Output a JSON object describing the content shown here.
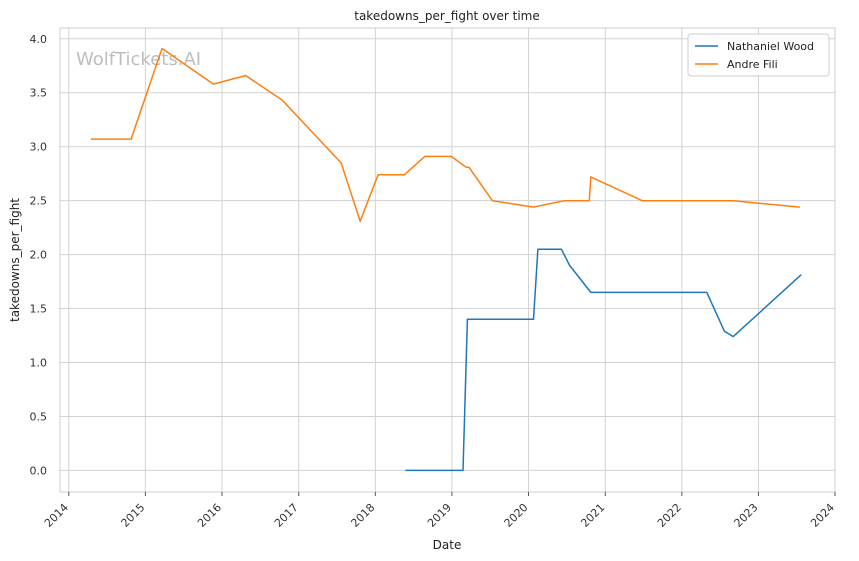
{
  "chart_data": {
    "type": "line",
    "title": "takedowns_per_fight over time",
    "xlabel": "Date",
    "ylabel": "takedowns_per_fight",
    "watermark": "WolfTickets.AI",
    "xlim": [
      "2013-11-20",
      "2024-01-01"
    ],
    "ylim": [
      -0.2,
      4.1
    ],
    "x_ticks": [
      "2014",
      "2015",
      "2016",
      "2017",
      "2018",
      "2019",
      "2020",
      "2021",
      "2022",
      "2023",
      "2024"
    ],
    "y_ticks": [
      "0.0",
      "0.5",
      "1.0",
      "1.5",
      "2.0",
      "2.5",
      "3.0",
      "3.5",
      "4.0"
    ],
    "grid": true,
    "legend_position": "top-right",
    "series": [
      {
        "name": "Nathaniel Wood",
        "color": "#1f77b4",
        "points": [
          [
            "2018-05-27",
            0.0
          ],
          [
            "2019-02-23",
            0.0
          ],
          [
            "2019-03-16",
            1.4
          ],
          [
            "2020-01-25",
            1.4
          ],
          [
            "2020-02-15",
            2.05
          ],
          [
            "2020-06-06",
            2.05
          ],
          [
            "2020-07-15",
            1.9
          ],
          [
            "2020-10-24",
            1.65
          ],
          [
            "2022-04-30",
            1.65
          ],
          [
            "2022-07-23",
            1.29
          ],
          [
            "2022-09-03",
            1.24
          ],
          [
            "2023-07-22",
            1.81
          ]
        ]
      },
      {
        "name": "Andre Fili",
        "color": "#ff7f0e",
        "points": [
          [
            "2014-04-19",
            3.07
          ],
          [
            "2014-10-25",
            3.07
          ],
          [
            "2015-03-21",
            3.91
          ],
          [
            "2015-11-21",
            3.58
          ],
          [
            "2016-04-23",
            3.66
          ],
          [
            "2016-10-15",
            3.43
          ],
          [
            "2017-07-22",
            2.85
          ],
          [
            "2017-10-21",
            2.31
          ],
          [
            "2018-01-14",
            2.74
          ],
          [
            "2018-05-19",
            2.74
          ],
          [
            "2018-08-25",
            2.91
          ],
          [
            "2018-12-29",
            2.91
          ],
          [
            "2019-03-09",
            2.81
          ],
          [
            "2019-03-23",
            2.81
          ],
          [
            "2019-07-13",
            2.5
          ],
          [
            "2020-01-25",
            2.44
          ],
          [
            "2020-06-20",
            2.5
          ],
          [
            "2020-10-17",
            2.5
          ],
          [
            "2020-10-24",
            2.72
          ],
          [
            "2021-06-26",
            2.5
          ],
          [
            "2022-09-03",
            2.5
          ],
          [
            "2023-07-15",
            2.44
          ]
        ]
      }
    ]
  }
}
